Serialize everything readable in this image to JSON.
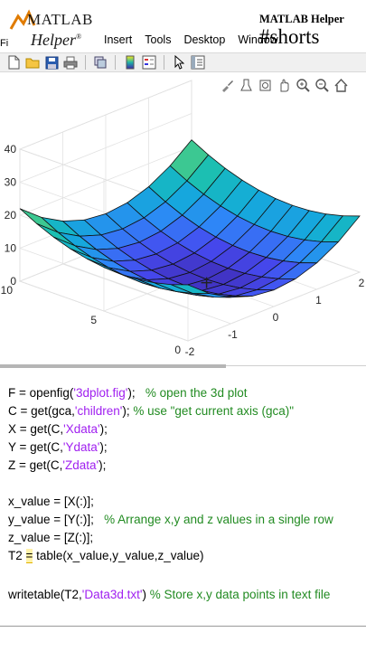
{
  "logo": {
    "matlab": "MATLAB",
    "helper": "Helper",
    "reg": "®",
    "fi": "Fi"
  },
  "menu": [
    "Insert",
    "Tools",
    "Desktop",
    "Window"
  ],
  "brand": {
    "small": "MATLAB Helper",
    "tag": "#shorts"
  },
  "toolbar_icons": [
    "new-figure-icon",
    "open-file-icon",
    "save-icon",
    "print-icon",
    "link-icon",
    "colorbar-icon",
    "legend-icon",
    "pointer-icon",
    "property-editor-icon"
  ],
  "axes_toolbar_icons": [
    "brush-icon",
    "data-tips-icon",
    "rotate-icon",
    "pan-icon",
    "zoom-in-icon",
    "zoom-out-icon",
    "home-icon"
  ],
  "chart_data": {
    "type": "surface",
    "title": "",
    "xlabel": "",
    "ylabel": "",
    "zlabel": "",
    "z_ticks": [
      "0",
      "10",
      "20",
      "30",
      "40"
    ],
    "x_ticks": [
      "-2",
      "-1",
      "0",
      "1",
      "2"
    ],
    "y_ticks": [
      "0",
      "5",
      "10"
    ],
    "xlim": [
      -2,
      2
    ],
    "ylim": [
      0,
      10
    ],
    "zlim": [
      0,
      40
    ],
    "grid": true,
    "colormap": "parula"
  },
  "code": [
    {
      "parts": [
        {
          "t": "F = openfig(",
          "c": ""
        },
        {
          "t": "'3dplot.fig'",
          "c": "str"
        },
        {
          "t": ");   ",
          "c": ""
        },
        {
          "t": "% open the 3d plot",
          "c": "cmt"
        }
      ]
    },
    {
      "parts": [
        {
          "t": "C = get(gca,",
          "c": ""
        },
        {
          "t": "'children'",
          "c": "str"
        },
        {
          "t": "); ",
          "c": ""
        },
        {
          "t": "% use \"get current axis (gca)\"",
          "c": "cmt"
        }
      ]
    },
    {
      "parts": [
        {
          "t": "X = get(C,",
          "c": ""
        },
        {
          "t": "'Xdata'",
          "c": "str"
        },
        {
          "t": ");",
          "c": ""
        }
      ]
    },
    {
      "parts": [
        {
          "t": "Y = get(C,",
          "c": ""
        },
        {
          "t": "'Ydata'",
          "c": "str"
        },
        {
          "t": ");",
          "c": ""
        }
      ]
    },
    {
      "parts": [
        {
          "t": "Z = get(C,",
          "c": ""
        },
        {
          "t": "'Zdata'",
          "c": "str"
        },
        {
          "t": ");",
          "c": ""
        }
      ]
    },
    {
      "parts": []
    },
    {
      "parts": [
        {
          "t": "x_value = [X(:)];",
          "c": ""
        }
      ]
    },
    {
      "parts": [
        {
          "t": "y_value = [Y(:)];   ",
          "c": ""
        },
        {
          "t": "% Arrange x,y and z values in a single row",
          "c": "cmt"
        }
      ]
    },
    {
      "parts": [
        {
          "t": "z_value = [Z(:)];",
          "c": ""
        }
      ]
    },
    {
      "parts": [
        {
          "t": "T2 ",
          "c": ""
        },
        {
          "t": "=",
          "c": "hl"
        },
        {
          "t": " table(x_value,y_value,z_value)",
          "c": ""
        }
      ]
    },
    {
      "parts": []
    },
    {
      "parts": [
        {
          "t": "writetable(T2,",
          "c": ""
        },
        {
          "t": "'Data3d.txt'",
          "c": "str"
        },
        {
          "t": ") ",
          "c": ""
        },
        {
          "t": "% Store x,y data points in text file",
          "c": "cmt"
        }
      ]
    }
  ]
}
